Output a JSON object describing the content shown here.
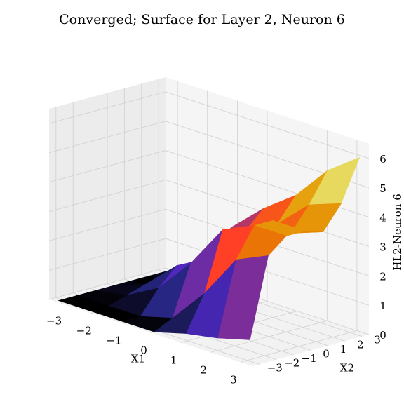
{
  "chart_data": {
    "type": "surface3d",
    "title": "Converged; Surface for Layer 2, Neuron 6",
    "xlabel": "X1",
    "ylabel": "X2",
    "zlabel": "HL2-Neuron 6",
    "xlim": [
      -3.4,
      3.4
    ],
    "ylim": [
      -3.4,
      3.4
    ],
    "zlim": [
      0,
      6.5
    ],
    "xticks": [
      "-3",
      "-2",
      "-1",
      "0",
      "1",
      "2",
      "3"
    ],
    "yticks": [
      "-3",
      "-2",
      "-1",
      "0",
      "1",
      "2",
      "3"
    ],
    "zticks": [
      "0",
      "1",
      "2",
      "3",
      "4",
      "5",
      "6"
    ],
    "colormap": "CMRmap",
    "grid": true,
    "x": [
      -3.2,
      -2.13,
      -1.07,
      0.0,
      1.07,
      2.13,
      3.2
    ],
    "y": [
      -3.2,
      -2.13,
      -1.07,
      0.0,
      1.07,
      2.13,
      3.2
    ],
    "z": [
      [
        0.0,
        0.0,
        0.0,
        0.0,
        0.3,
        0.5,
        0.8
      ],
      [
        0.0,
        0.0,
        0.0,
        0.3,
        1.5,
        3.0,
        3.5
      ],
      [
        0.0,
        0.2,
        0.8,
        2.0,
        3.5,
        4.0,
        4.0
      ],
      [
        0.0,
        0.4,
        1.4,
        2.0,
        3.0,
        4.0,
        4.0
      ],
      [
        0.0,
        0.0,
        1.0,
        2.0,
        2.8,
        3.4,
        3.8
      ],
      [
        0.0,
        0.0,
        1.8,
        2.6,
        3.2,
        4.2,
        4.6
      ],
      [
        0.0,
        0.6,
        2.2,
        3.2,
        4.0,
        5.2,
        6.0
      ]
    ]
  }
}
